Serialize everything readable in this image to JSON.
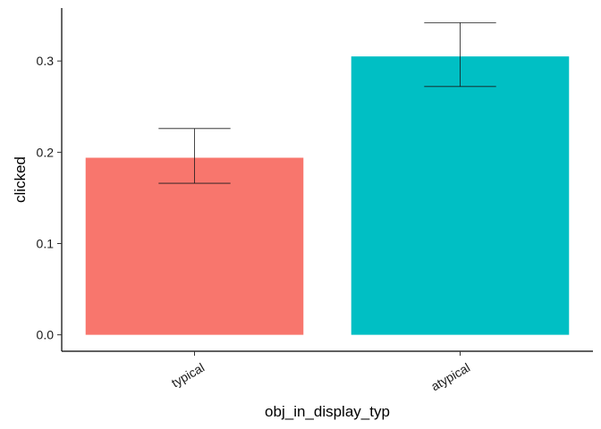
{
  "chart_data": {
    "type": "bar",
    "title": "",
    "xlabel": "obj_in_display_typ",
    "ylabel": "clicked",
    "categories": [
      "typical",
      "atypical"
    ],
    "values": [
      0.194,
      0.305
    ],
    "error_bars": [
      {
        "lower": 0.166,
        "upper": 0.226
      },
      {
        "lower": 0.272,
        "upper": 0.342
      }
    ],
    "colors": [
      "#F8766D",
      "#00BFC4"
    ],
    "ylim": [
      -0.018,
      0.358
    ],
    "yticks": [
      0.0,
      0.1,
      0.2,
      0.3
    ],
    "ytick_labels": [
      "0.0",
      "0.1",
      "0.2",
      "0.3"
    ],
    "grid": false,
    "legend": "none",
    "xtick_rotation": "angled"
  }
}
